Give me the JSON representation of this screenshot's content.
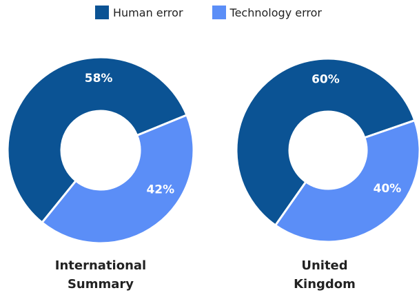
{
  "chart_data": [
    {
      "type": "pie",
      "title": "International Summary",
      "categories": [
        "Human error",
        "Technology error"
      ],
      "values": [
        58,
        42
      ],
      "value_labels": [
        "58%",
        "42%"
      ],
      "colors": [
        "#0b5394",
        "#5b8ef7"
      ]
    },
    {
      "type": "pie",
      "title": "United Kingdom",
      "categories": [
        "Human error",
        "Technology error"
      ],
      "values": [
        60,
        40
      ],
      "value_labels": [
        "60%",
        "40%"
      ],
      "colors": [
        "#0b5394",
        "#5b8ef7"
      ]
    }
  ]
}
